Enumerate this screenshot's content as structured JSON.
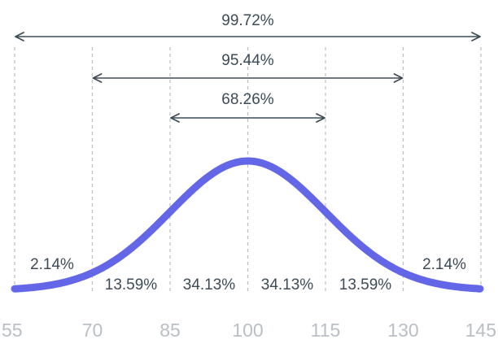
{
  "colors": {
    "curve": "#6366e6",
    "arrow": "#3d4b58",
    "text": "#3d4b58",
    "guide": "#b8bfc6",
    "axis_label": "#b9bfc5"
  },
  "ranges": [
    {
      "label": "99.72%",
      "from": 55,
      "to": 145
    },
    {
      "label": "95.44%",
      "from": 70,
      "to": 130
    },
    {
      "label": "68.26%",
      "from": 85,
      "to": 115
    }
  ],
  "segments": [
    {
      "label": "2.14%"
    },
    {
      "label": "13.59%"
    },
    {
      "label": "34.13%"
    },
    {
      "label": "34.13%"
    },
    {
      "label": "13.59%"
    },
    {
      "label": "2.14%"
    }
  ],
  "axis": {
    "ticks": [
      "55",
      "70",
      "85",
      "100",
      "115",
      "130",
      "145"
    ],
    "mean": 100,
    "sd": 15
  }
}
